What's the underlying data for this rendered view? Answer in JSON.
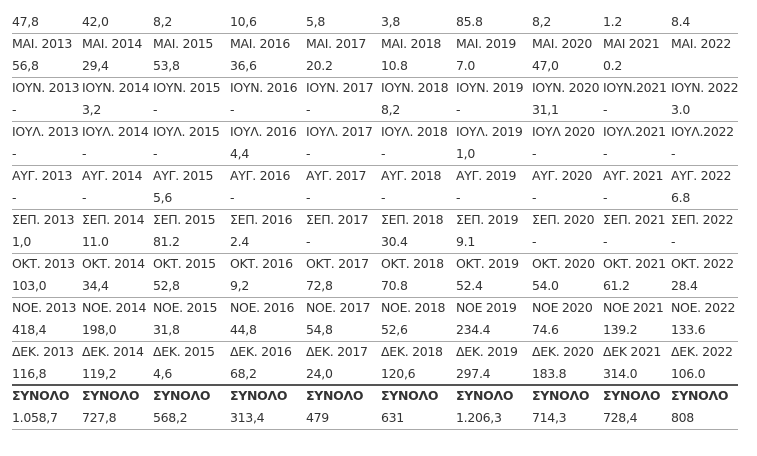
{
  "table": {
    "first_row": [
      "47,8",
      "42,0",
      "8,2",
      "10,6",
      "5,8",
      "3,8",
      "85.8",
      "8,2",
      "1.2",
      "8.4"
    ],
    "groups": [
      {
        "labels": [
          "ΜΑΙ. 2013",
          "ΜΑΙ. 2014",
          "ΜΑΙ. 2015",
          "ΜΑΙ. 2016",
          "ΜΑΙ. 2017",
          "ΜΑΙ. 2018",
          "ΜΑΙ. 2019",
          "ΜΑΙ. 2020",
          "ΜΑΙ 2021",
          "ΜΑΙ. 2022"
        ],
        "values": [
          "56,8",
          "29,4",
          "53,8",
          "36,6",
          "20.2",
          "10.8",
          "7.0",
          "47,0",
          "0.2",
          null
        ]
      },
      {
        "labels": [
          "ΙΟΥΝ. 2013",
          "ΙΟΥΝ. 2014",
          "ΙΟΥΝ. 2015",
          "ΙΟΥΝ. 2016",
          "ΙΟΥΝ. 2017",
          "ΙΟΥΝ. 2018",
          "ΙΟΥΝ. 2019",
          "ΙΟΥΝ. 2020",
          "ΙΟΥΝ.2021",
          "ΙΟΥΝ. 2022"
        ],
        "values": [
          "-",
          "3,2",
          "-",
          "-",
          "-",
          "8,2",
          "-",
          "31,1",
          "-",
          "3.0"
        ]
      },
      {
        "labels": [
          "ΙΟΥΛ. 2013",
          "ΙΟΥΛ. 2014",
          "ΙΟΥΛ. 2015",
          "ΙΟΥΛ. 2016",
          "ΙΟΥΛ. 2017",
          "ΙΟΥΛ. 2018",
          "ΙΟΥΛ. 2019",
          "ΙΟΥΛ 2020",
          "ΙΟΥΛ.2021",
          "ΙΟΥΛ.2022"
        ],
        "values": [
          "-",
          "-",
          "-",
          "4,4",
          "-",
          "-",
          "1,0",
          "-",
          "-",
          "-"
        ]
      },
      {
        "labels": [
          "ΑΥΓ. 2013",
          "ΑΥΓ. 2014",
          "ΑΥΓ. 2015",
          "ΑΥΓ. 2016",
          "ΑΥΓ. 2017",
          "ΑΥΓ. 2018",
          "ΑΥΓ. 2019",
          "ΑΥΓ. 2020",
          "ΑΥΓ. 2021",
          "ΑΥΓ. 2022"
        ],
        "values": [
          "-",
          "-",
          "5,6",
          "-",
          "-",
          "-",
          "-",
          "-",
          "-",
          "6.8"
        ]
      },
      {
        "labels": [
          "ΣΕΠ. 2013",
          "ΣΕΠ. 2014",
          "ΣΕΠ. 2015",
          "ΣΕΠ. 2016",
          "ΣΕΠ. 2017",
          "ΣΕΠ. 2018",
          "ΣΕΠ. 2019",
          "ΣΕΠ. 2020",
          "ΣΕΠ. 2021",
          "ΣΕΠ. 2022"
        ],
        "values": [
          "1,0",
          "11.0",
          "81.2",
          "2.4",
          "-",
          "30.4",
          "9.1",
          "-",
          "-",
          "-"
        ]
      },
      {
        "labels": [
          "ΟΚΤ. 2013",
          "ΟΚΤ. 2014",
          "ΟΚΤ. 2015",
          "ΟΚΤ. 2016",
          "ΟΚΤ. 2017",
          "ΟΚΤ. 2018",
          "ΟΚΤ. 2019",
          "ΟΚΤ. 2020",
          "ΟΚΤ. 2021",
          "ΟΚΤ. 2022"
        ],
        "values": [
          "103,0",
          "34,4",
          "52,8",
          "9,2",
          "72,8",
          "70.8",
          "52.4",
          "54.0",
          "61.2",
          "28.4"
        ]
      },
      {
        "labels": [
          "ΝΟΕ. 2013",
          "ΝΟΕ. 2014",
          "ΝΟΕ. 2015",
          "ΝΟΕ. 2016",
          "ΝΟΕ. 2017",
          "ΝΟΕ. 2018",
          "ΝΟΕ 2019",
          "ΝΟΕ 2020",
          "ΝΟΕ 2021",
          "ΝΟΕ. 2022"
        ],
        "values": [
          "418,4",
          "198,0",
          "31,8",
          "44,8",
          "54,8",
          "52,6",
          "234.4",
          "74.6",
          "139.2",
          "133.6"
        ]
      },
      {
        "labels": [
          "ΔΕΚ. 2013",
          "ΔΕΚ. 2014",
          "ΔΕΚ. 2015",
          "ΔΕΚ. 2016",
          "ΔΕΚ. 2017",
          "ΔΕΚ. 2018",
          "ΔΕΚ. 2019",
          "ΔΕΚ. 2020",
          "ΔΕΚ 2021",
          "ΔΕΚ. 2022"
        ],
        "values": [
          "116,8",
          "119,2",
          "4,6",
          "68,2",
          "24,0",
          "120,6",
          "297.4",
          "183.8",
          "314.0",
          "106.0"
        ]
      },
      {
        "labels": [
          "ΣΥΝΟΛΟ",
          "ΣΥΝΟΛΟ",
          "ΣΥΝΟΛΟ",
          "ΣΥΝΟΛΟ",
          "ΣΥΝΟΛΟ",
          "ΣΥΝΟΛΟ",
          "ΣΥΝΟΛΟ",
          "ΣΥΝΟΛΟ",
          "ΣΥΝΟΛΟ",
          "ΣΥΝΟΛΟ"
        ],
        "values": [
          "1.058,7",
          "727,8",
          "568,2",
          "313,4",
          "479",
          "631",
          "1.206,3",
          "714,3",
          "728,4",
          "808"
        ]
      }
    ]
  }
}
